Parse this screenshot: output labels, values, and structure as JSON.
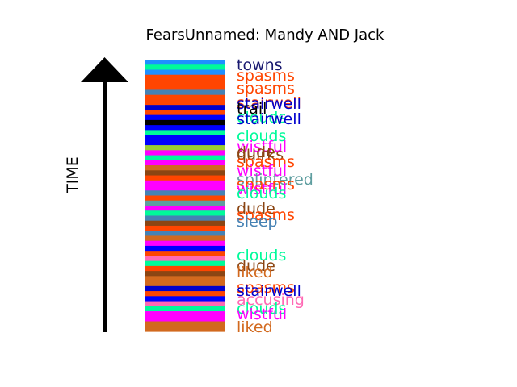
{
  "chart_data": {
    "type": "bar",
    "title": "FearsUnnamed: Mandy AND Jack",
    "ylabel": "TIME",
    "axis_direction": "up",
    "stripes": [
      {
        "color": "#1e90ff"
      },
      {
        "color": "#00fa9a"
      },
      {
        "color": "#1e90ff"
      },
      {
        "color": "#ff4500"
      },
      {
        "color": "#ff4500"
      },
      {
        "color": "#ff4500"
      },
      {
        "color": "#4682b4"
      },
      {
        "color": "#ff4500"
      },
      {
        "color": "#ff4500"
      },
      {
        "color": "#0000cd"
      },
      {
        "color": "#ff4500"
      },
      {
        "color": "#0000ff"
      },
      {
        "color": "#000000"
      },
      {
        "color": "#0000ff"
      },
      {
        "color": "#00fa9a"
      },
      {
        "color": "#0000ff"
      },
      {
        "color": "#0000ff"
      },
      {
        "color": "#9acd32"
      },
      {
        "color": "#ff00ff"
      },
      {
        "color": "#00fa9a"
      },
      {
        "color": "#ff00ff"
      },
      {
        "color": "#d2691e"
      },
      {
        "color": "#8b4513"
      },
      {
        "color": "#ff4500"
      },
      {
        "color": "#ff00ff"
      },
      {
        "color": "#ff00ff"
      },
      {
        "color": "#4682b4"
      },
      {
        "color": "#ff4500"
      },
      {
        "color": "#5f9ea0"
      },
      {
        "color": "#ff00ff"
      },
      {
        "color": "#00fa9a"
      },
      {
        "color": "#4682b4"
      },
      {
        "color": "#8b4513"
      },
      {
        "color": "#ff4500"
      },
      {
        "color": "#4682b4"
      },
      {
        "color": "#d2691e"
      },
      {
        "color": "#ff00ff"
      },
      {
        "color": "#0000ff"
      },
      {
        "color": "#ff4500"
      },
      {
        "color": "#ff69b4"
      },
      {
        "color": "#00fa9a"
      },
      {
        "color": "#ff4500"
      },
      {
        "color": "#8b4513"
      },
      {
        "color": "#d2691e"
      },
      {
        "color": "#d2691e"
      },
      {
        "color": "#0000cd"
      },
      {
        "color": "#ff4500"
      },
      {
        "color": "#0000ff"
      },
      {
        "color": "#ff69b4"
      },
      {
        "color": "#00fa9a"
      },
      {
        "color": "#ff00ff"
      },
      {
        "color": "#ff00ff"
      },
      {
        "color": "#d2691e"
      },
      {
        "color": "#d2691e"
      }
    ],
    "words": [
      {
        "text": "towns",
        "color": "#191970"
      },
      {
        "text": "spasms",
        "color": "#ff4500"
      },
      {
        "text": "spasms",
        "color": "#ff4500"
      },
      {
        "text": "stairwell",
        "color": "#ff4500"
      },
      {
        "text": "stairwell",
        "color": "#0000cd"
      },
      {
        "text": "trail",
        "color": "#000000"
      },
      {
        "text": "clouds",
        "color": "#00fa9a"
      },
      {
        "text": "stairwell",
        "color": "#0000cd"
      },
      {
        "text": "clouds",
        "color": "#00fa9a"
      },
      {
        "text": "wistful",
        "color": "#ff00ff"
      },
      {
        "text": "dude",
        "color": "#8b4513"
      },
      {
        "text": "quirks",
        "color": "#8b4513"
      },
      {
        "text": "spasms",
        "color": "#ff4500"
      },
      {
        "text": "wistful",
        "color": "#ff00ff"
      },
      {
        "text": "splintered",
        "color": "#5f9ea0"
      },
      {
        "text": "spasms",
        "color": "#ff4500"
      },
      {
        "text": "wistful",
        "color": "#ff00ff"
      },
      {
        "text": "clouds",
        "color": "#00fa9a"
      },
      {
        "text": "dude",
        "color": "#8b4513"
      },
      {
        "text": "spasms",
        "color": "#ff4500"
      },
      {
        "text": "sleep",
        "color": "#4682b4"
      },
      {
        "text": "clouds",
        "color": "#00fa9a"
      },
      {
        "text": "dude",
        "color": "#8b4513"
      },
      {
        "text": "liked",
        "color": "#d2691e"
      },
      {
        "text": "spasms",
        "color": "#ff4500"
      },
      {
        "text": "stairwell",
        "color": "#0000cd"
      },
      {
        "text": "accusing",
        "color": "#ff69b4"
      },
      {
        "text": "clouds",
        "color": "#00fa9a"
      },
      {
        "text": "wistful",
        "color": "#ff00ff"
      },
      {
        "text": "liked",
        "color": "#d2691e"
      }
    ],
    "grid": false,
    "legend": "none"
  }
}
